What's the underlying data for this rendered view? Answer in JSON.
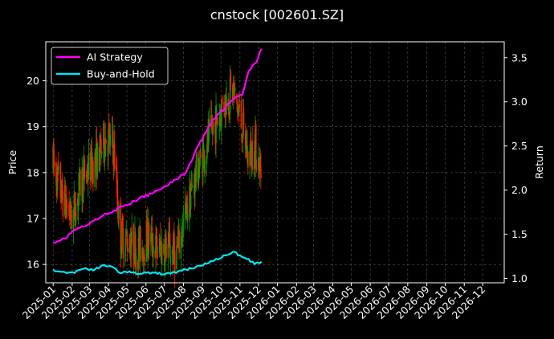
{
  "colors": {
    "background": "#000000",
    "text": "#ffffff",
    "grid": "#555555",
    "up_candle": "#00a000",
    "down_candle": "#ff2000",
    "ai_strategy": "#ff00ff",
    "buy_and_hold": "#00e5f0"
  },
  "chart_data": {
    "type": "line",
    "title": "cnstock [002601.SZ]",
    "ylabel_left": "Price",
    "ylabel_right": "Return",
    "xlim": [
      "2024-12-20",
      "2027-01-05"
    ],
    "ylim_left": [
      15.6,
      20.85
    ],
    "ylim_right": [
      0.95,
      3.68
    ],
    "x_ticks": [
      "2025-01",
      "2025-02",
      "2025-03",
      "2025-04",
      "2025-05",
      "2025-06",
      "2025-07",
      "2025-08",
      "2025-09",
      "2025-10",
      "2025-11",
      "2025-12",
      "2026-01",
      "2026-02",
      "2026-03",
      "2026-04",
      "2026-05",
      "2026-06",
      "2026-07",
      "2026-08",
      "2026-09",
      "2026-10",
      "2026-11",
      "2026-12"
    ],
    "y_ticks_left": [
      16,
      17,
      18,
      19,
      20
    ],
    "y_ticks_right": [
      "1.0",
      "1.5",
      "2.0",
      "2.5",
      "3.0",
      "3.5"
    ],
    "grid": true,
    "legend_position": "top-left",
    "legend": [
      "AI Strategy",
      "Buy-and-Hold"
    ],
    "price_series": {
      "name": "",
      "points": [
        [
          "2025-01-01",
          18.2
        ],
        [
          "2025-01-15",
          17.5
        ],
        [
          "2025-02-01",
          17.0
        ],
        [
          "2025-02-15",
          17.8
        ],
        [
          "2025-03-01",
          18.1
        ],
        [
          "2025-03-15",
          18.3
        ],
        [
          "2025-03-28",
          18.8
        ],
        [
          "2025-04-10",
          18.5
        ],
        [
          "2025-04-20",
          16.6
        ],
        [
          "2025-05-05",
          16.5
        ],
        [
          "2025-05-20",
          16.3
        ],
        [
          "2025-06-05",
          16.6
        ],
        [
          "2025-06-20",
          16.3
        ],
        [
          "2025-07-05",
          16.4
        ],
        [
          "2025-07-20",
          16.2
        ],
        [
          "2025-08-05",
          17.1
        ],
        [
          "2025-08-20",
          17.9
        ],
        [
          "2025-09-05",
          18.5
        ],
        [
          "2025-09-20",
          19.0
        ],
        [
          "2025-10-05",
          19.5
        ],
        [
          "2025-10-20",
          19.8
        ],
        [
          "2025-11-01",
          19.2
        ],
        [
          "2025-11-15",
          18.3
        ],
        [
          "2025-11-25",
          18.6
        ],
        [
          "2025-12-05",
          18.0
        ]
      ]
    },
    "series": [
      {
        "name": "AI Strategy",
        "points": [
          [
            "2025-01-01",
            1.41
          ],
          [
            "2025-01-20",
            1.45
          ],
          [
            "2025-02-05",
            1.55
          ],
          [
            "2025-02-25",
            1.6
          ],
          [
            "2025-03-20",
            1.7
          ],
          [
            "2025-04-10",
            1.77
          ],
          [
            "2025-05-01",
            1.83
          ],
          [
            "2025-05-20",
            1.9
          ],
          [
            "2025-06-10",
            1.96
          ],
          [
            "2025-07-01",
            2.04
          ],
          [
            "2025-07-20",
            2.12
          ],
          [
            "2025-08-05",
            2.2
          ],
          [
            "2025-08-25",
            2.5
          ],
          [
            "2025-09-10",
            2.7
          ],
          [
            "2025-09-25",
            2.85
          ],
          [
            "2025-10-10",
            2.95
          ],
          [
            "2025-10-25",
            3.05
          ],
          [
            "2025-11-05",
            3.08
          ],
          [
            "2025-11-15",
            3.35
          ],
          [
            "2025-11-28",
            3.45
          ],
          [
            "2025-12-06",
            3.6
          ]
        ]
      },
      {
        "name": "Buy-and-Hold",
        "points": [
          [
            "2025-01-01",
            1.1
          ],
          [
            "2025-01-20",
            1.07
          ],
          [
            "2025-02-05",
            1.06
          ],
          [
            "2025-02-20",
            1.11
          ],
          [
            "2025-03-10",
            1.1
          ],
          [
            "2025-03-25",
            1.15
          ],
          [
            "2025-04-10",
            1.12
          ],
          [
            "2025-04-20",
            1.06
          ],
          [
            "2025-05-05",
            1.08
          ],
          [
            "2025-05-20",
            1.05
          ],
          [
            "2025-06-05",
            1.07
          ],
          [
            "2025-06-20",
            1.05
          ],
          [
            "2025-07-05",
            1.06
          ],
          [
            "2025-07-20",
            1.06
          ],
          [
            "2025-08-05",
            1.1
          ],
          [
            "2025-08-20",
            1.12
          ],
          [
            "2025-09-05",
            1.17
          ],
          [
            "2025-09-20",
            1.2
          ],
          [
            "2025-10-05",
            1.26
          ],
          [
            "2025-10-20",
            1.3
          ],
          [
            "2025-11-01",
            1.26
          ],
          [
            "2025-11-15",
            1.22
          ],
          [
            "2025-11-25",
            1.16
          ],
          [
            "2025-12-06",
            1.19
          ]
        ]
      }
    ]
  }
}
